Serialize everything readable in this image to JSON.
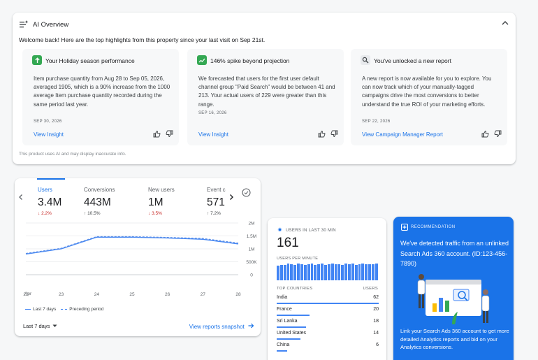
{
  "ai_overview": {
    "title": "AI Overview",
    "welcome": "Welcome back! Here are the top highlights from this property since your last visit on Sep 21st.",
    "disclaimer": "This product uses AI and may display inaccurate info.",
    "insights": [
      {
        "title": "Your Holiday season performance",
        "icon": "trend-up-icon",
        "body": "Item purchase quantity from Aug 28 to Sep 05, 2026, averaged 1905, which is a 90% increase from the 1000 average Item purchase quantity recorded during the same period last year.",
        "date": "SEP 30, 2026",
        "link": "View Insight"
      },
      {
        "title": "146% spike beyond projection",
        "icon": "spike-chart-icon",
        "body": "We forecasted that users for the first user default channel group \"Paid Search\" would be between 41 and 213. Your actual users of 229 were greater than this range.",
        "date": "SEP 16, 2026",
        "link": "View Insight"
      },
      {
        "title": "You've unlocked a new report",
        "icon": "report-search-icon",
        "body": "A new report is now available for you to explore. You can now track which of your manually-tagged campaigns drive the most conversions to better understand the true ROI of your marketing efforts.",
        "date": "SEP 22, 2026",
        "link": "View Campaign Manager Report"
      }
    ]
  },
  "metrics": {
    "tabs": [
      {
        "label": "Users",
        "value": "3.4M",
        "delta": "2.2%",
        "dir": "down"
      },
      {
        "label": "Conversions",
        "value": "443M",
        "delta": "10.5%",
        "dir": "up"
      },
      {
        "label": "New users",
        "value": "1M",
        "delta": "3.5%",
        "dir": "down"
      },
      {
        "label": "Event c",
        "value": "571",
        "delta": "7.2%",
        "dir": "up"
      }
    ],
    "y_labels": [
      "2M",
      "1.5M",
      "1M",
      "500K",
      "0"
    ],
    "x_labels": [
      "22",
      "23",
      "24",
      "25",
      "26",
      "27",
      "28"
    ],
    "x_sublabel": "Apr",
    "legend_current": "Last 7 days",
    "legend_previous": "Preceding period",
    "range_label": "Last 7 days",
    "snapshot_link": "View reports snapshot",
    "colors": {
      "accent": "#1a73e8",
      "line": "#4285f4",
      "previous": "#5b8fe8"
    }
  },
  "chart_data": {
    "type": "line",
    "categories": [
      "22",
      "23",
      "24",
      "25",
      "26",
      "27",
      "28"
    ],
    "series": [
      {
        "name": "Last 7 days",
        "values": [
          800000,
          1000000,
          1450000,
          1450000,
          1420000,
          1370000,
          1190000
        ]
      },
      {
        "name": "Preceding period",
        "values": [
          820000,
          1020000,
          1470000,
          1470000,
          1440000,
          1400000,
          1220000
        ]
      }
    ],
    "ylim": [
      0,
      2000000
    ]
  },
  "realtime": {
    "label": "USERS IN LAST 30 MIN",
    "value": "161",
    "sublabel": "USERS PER MINUTE",
    "per_minute": [
      0.85,
      0.9,
      0.88,
      0.95,
      0.92,
      0.9,
      0.96,
      0.93,
      0.88,
      0.94,
      0.97,
      0.9,
      0.92,
      0.95,
      0.89,
      0.93,
      0.96,
      0.91,
      0.94,
      0.9,
      0.95,
      0.92,
      0.97,
      0.9,
      0.93,
      0.95,
      0.91,
      0.94,
      0.92,
      0.96
    ],
    "col_country": "TOP COUNTRIES",
    "col_users": "USERS",
    "countries": [
      {
        "name": "India",
        "users": "62",
        "share": 1.0
      },
      {
        "name": "France",
        "users": "20",
        "share": 0.32
      },
      {
        "name": "Sri Lanka",
        "users": "18",
        "share": 0.29
      },
      {
        "name": "United States",
        "users": "14",
        "share": 0.23
      },
      {
        "name": "China",
        "users": "6",
        "share": 0.1
      }
    ]
  },
  "recommendation": {
    "label": "RECOMMENDATION",
    "title": "We've detected traffic from an unlinked Search Ads 360 account. (ID:123-456-7890)",
    "body": "Link your Search Ads 360 account to get more detailed Analytics reports and bid on your Analytics conversions."
  }
}
